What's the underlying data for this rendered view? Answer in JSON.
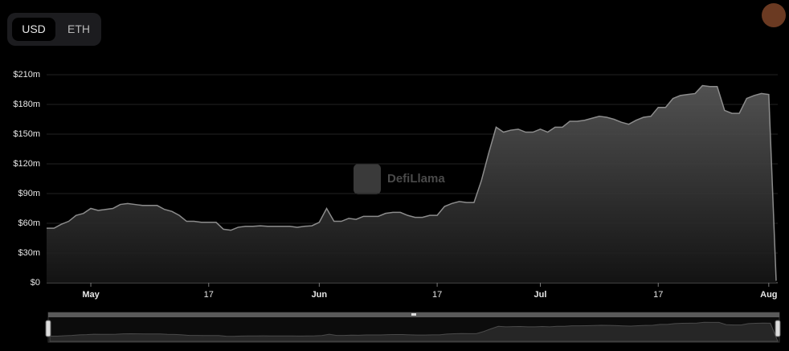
{
  "toggle": {
    "options": [
      "USD",
      "ETH"
    ]
  },
  "watermark": "DefiLlama",
  "chart_data": {
    "type": "area",
    "x": [
      "04-25",
      "04-26",
      "04-27",
      "04-28",
      "04-29",
      "04-30",
      "05-01",
      "05-02",
      "05-03",
      "05-04",
      "05-05",
      "05-06",
      "05-07",
      "05-08",
      "05-09",
      "05-10",
      "05-11",
      "05-12",
      "05-13",
      "05-14",
      "05-15",
      "05-16",
      "05-17",
      "05-18",
      "05-19",
      "05-20",
      "05-21",
      "05-22",
      "05-23",
      "05-24",
      "05-25",
      "05-26",
      "05-27",
      "05-28",
      "05-29",
      "05-30",
      "05-31",
      "06-01",
      "06-02",
      "06-03",
      "06-04",
      "06-05",
      "06-06",
      "06-07",
      "06-08",
      "06-09",
      "06-10",
      "06-11",
      "06-12",
      "06-13",
      "06-14",
      "06-15",
      "06-16",
      "06-17",
      "06-18",
      "06-19",
      "06-20",
      "06-21",
      "06-22",
      "06-23",
      "06-24",
      "06-25",
      "06-26",
      "06-27",
      "06-28",
      "06-29",
      "06-30",
      "07-01",
      "07-02",
      "07-03",
      "07-04",
      "07-05",
      "07-06",
      "07-07",
      "07-08",
      "07-09",
      "07-10",
      "07-11",
      "07-12",
      "07-13",
      "07-14",
      "07-15",
      "07-16",
      "07-17",
      "07-18",
      "07-19",
      "07-20",
      "07-21",
      "07-22",
      "07-23",
      "07-24",
      "07-25",
      "07-26",
      "07-27",
      "07-28",
      "07-29",
      "07-30",
      "07-31",
      "08-01",
      "08-02"
    ],
    "series": [
      {
        "color": "#8c8c8c",
        "values": [
          55,
          55,
          59,
          62,
          68,
          70,
          75,
          73,
          74,
          75,
          79,
          80,
          79,
          78,
          78,
          78,
          74,
          72,
          68,
          62,
          62,
          61,
          61,
          61,
          54,
          53,
          56,
          57,
          57,
          57.5,
          57,
          57,
          57,
          57,
          56,
          57,
          57.5,
          61,
          75,
          62,
          62,
          65,
          64,
          67,
          67,
          67,
          70,
          71,
          71,
          68,
          66,
          66,
          68,
          68,
          77,
          80,
          82,
          81,
          81,
          103,
          131,
          157,
          152,
          154,
          155,
          152,
          152,
          155,
          152,
          157,
          157,
          163,
          163,
          164,
          166,
          168,
          167,
          165,
          162,
          160,
          164,
          167,
          168,
          177,
          177,
          186,
          189,
          190,
          191,
          199,
          198,
          198,
          174,
          171,
          171,
          186,
          189,
          191,
          190,
          2
        ]
      }
    ],
    "xlim": [
      "04-25",
      "08-02"
    ],
    "xticks": [
      {
        "value": "05-01",
        "label": "May"
      },
      {
        "value": "05-17",
        "label": "17"
      },
      {
        "value": "06-01",
        "label": "Jun"
      },
      {
        "value": "06-17",
        "label": "17"
      },
      {
        "value": "07-01",
        "label": "Jul"
      },
      {
        "value": "07-17",
        "label": "17"
      },
      {
        "value": "08-01",
        "label": "Aug"
      }
    ],
    "ylim": [
      0,
      210
    ],
    "yticks": [
      {
        "value": 0,
        "label": "$0"
      },
      {
        "value": 30,
        "label": "$30m"
      },
      {
        "value": 60,
        "label": "$60m"
      },
      {
        "value": 90,
        "label": "$90m"
      },
      {
        "value": 120,
        "label": "$120m"
      },
      {
        "value": 150,
        "label": "$150m"
      },
      {
        "value": 180,
        "label": "$180m"
      },
      {
        "value": 210,
        "label": "$210m"
      }
    ],
    "grid": true
  }
}
